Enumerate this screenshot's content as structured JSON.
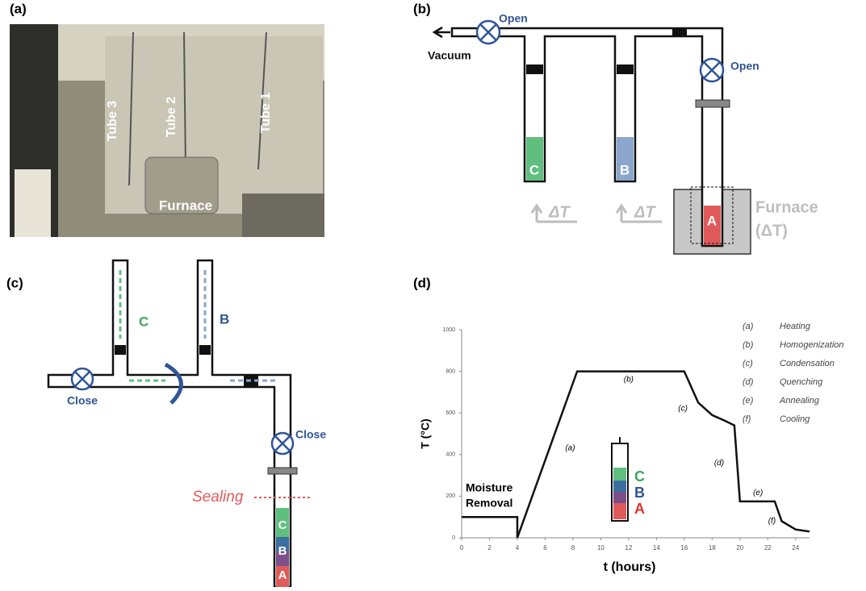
{
  "panels": {
    "a": {
      "label": "(a)",
      "tubes": [
        "Tube 3",
        "Tube 2",
        "Tube 1"
      ],
      "furnace": "Furnace"
    },
    "b": {
      "label": "(b)",
      "valve_left": "Open",
      "vacuum": "Vacuum",
      "valve_right": "Open",
      "tubes": [
        "C",
        "B",
        "A"
      ],
      "delta_t": "ΔT",
      "furnace": "Furnace",
      "furnace_delta": "(ΔT)"
    },
    "c": {
      "label": "(c)",
      "tubes": [
        "C",
        "B"
      ],
      "valve_left": "Close",
      "valve_right": "Close",
      "sealing": "Sealing",
      "layers": [
        "C",
        "B",
        "A"
      ]
    },
    "d": {
      "label": "(d)"
    }
  },
  "chart_data": {
    "type": "line",
    "xlabel": "t (hours)",
    "ylabel": "T (°C)",
    "x": [
      0,
      4,
      4,
      8.3,
      16,
      17,
      18,
      19,
      19.6,
      20,
      22.5,
      23,
      24,
      25
    ],
    "values": [
      100,
      100,
      0,
      800,
      800,
      650,
      590,
      560,
      540,
      175,
      175,
      80,
      40,
      30
    ],
    "color": "#111111",
    "xlim": [
      0,
      25
    ],
    "xticks": [
      0,
      2,
      4,
      6,
      8,
      10,
      12,
      14,
      16,
      18,
      20,
      22,
      24
    ],
    "ylim": [
      0,
      1000
    ],
    "yticks": [
      0,
      200,
      400,
      600,
      800,
      1000
    ],
    "moisture": [
      "Moisture",
      "Removal"
    ],
    "stages": [
      {
        "key": "(a)",
        "name": "Heating"
      },
      {
        "key": "(b)",
        "name": "Homogenization"
      },
      {
        "key": "(c)",
        "name": "Condensation"
      },
      {
        "key": "(d)",
        "name": "Quenching"
      },
      {
        "key": "(e)",
        "name": "Annealing"
      },
      {
        "key": "(f)",
        "name": "Cooling"
      }
    ],
    "inset_layers": [
      "C",
      "B",
      "A"
    ]
  }
}
